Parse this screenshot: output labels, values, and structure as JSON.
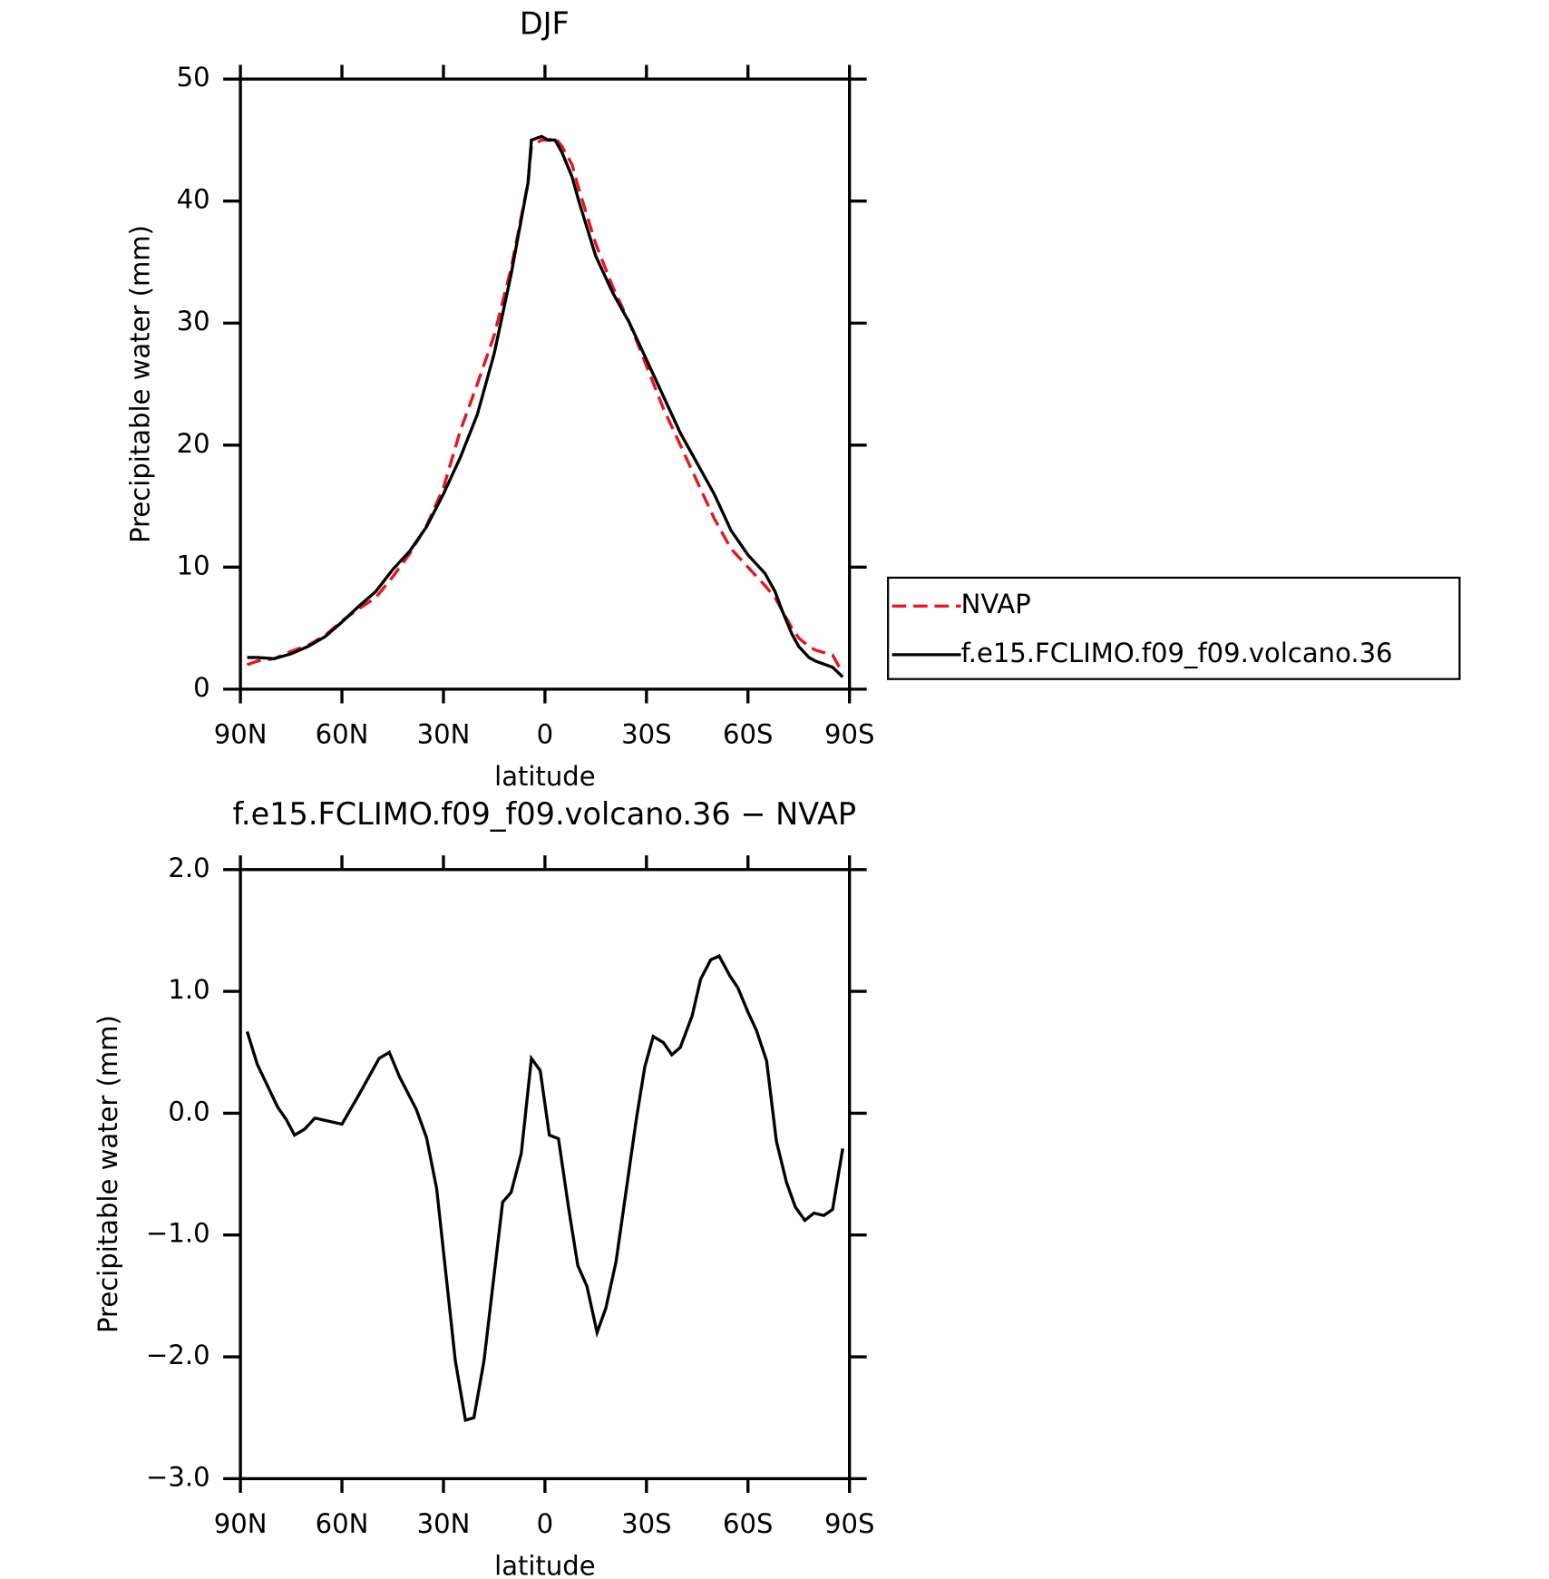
{
  "chart_data": [
    {
      "type": "line",
      "title": "DJF",
      "xlabel": "latitude",
      "ylabel": "Precipitable water (mm)",
      "x": [
        88,
        85,
        80,
        75,
        70,
        65,
        60,
        55,
        50,
        45,
        40,
        35,
        30,
        25,
        20,
        15,
        10,
        5,
        4,
        1,
        -1,
        -3,
        -5,
        -8,
        -10,
        -15,
        -20,
        -25,
        -30,
        -35,
        -40,
        -45,
        -50,
        -55,
        -60,
        -65,
        -68,
        -70,
        -73,
        -75,
        -78,
        -80,
        -85,
        -88
      ],
      "series": [
        {
          "name": "NVAP",
          "color": "#e8141e",
          "dash": true,
          "values": [
            2.0,
            2.3,
            2.5,
            3.1,
            3.6,
            4.4,
            5.6,
            6.6,
            7.5,
            9.2,
            11.1,
            13.4,
            16.5,
            21.2,
            25.0,
            29.0,
            34.5,
            41.5,
            44.5,
            45.0,
            45.0,
            45.2,
            44.5,
            43.0,
            41.0,
            36.5,
            33.0,
            30.0,
            26.5,
            23.0,
            20.0,
            17.0,
            14.0,
            11.5,
            10.0,
            8.5,
            7.5,
            6.5,
            5.0,
            4.2,
            3.5,
            3.2,
            2.8,
            1.3
          ]
        },
        {
          "name": "f.e15.FCLIMO.f09_f09.volcano.36",
          "color": "#000000",
          "dash": false,
          "values": [
            2.6,
            2.6,
            2.5,
            2.9,
            3.5,
            4.3,
            5.5,
            6.8,
            8.0,
            9.8,
            11.3,
            13.3,
            16.0,
            19.0,
            22.5,
            27.5,
            34.0,
            41.5,
            45.0,
            45.3,
            45.0,
            45.0,
            44.0,
            42.0,
            40.0,
            35.5,
            32.5,
            30.0,
            27.0,
            24.0,
            21.0,
            18.5,
            16.0,
            13.0,
            11.0,
            9.5,
            8.0,
            6.5,
            4.5,
            3.5,
            2.6,
            2.3,
            1.8,
            1.0
          ]
        }
      ],
      "xlim": [
        90,
        -90
      ],
      "xticks": [
        {
          "value": 90,
          "label": "90N"
        },
        {
          "value": 60,
          "label": "60N"
        },
        {
          "value": 30,
          "label": "30N"
        },
        0,
        {
          "value": -30,
          "label": "30S"
        },
        {
          "value": -60,
          "label": "60S"
        },
        {
          "value": -90,
          "label": "90S"
        }
      ],
      "ylim": [
        0,
        50
      ],
      "yticks": [
        0,
        10,
        20,
        30,
        40,
        50
      ],
      "legend": "right"
    },
    {
      "type": "line",
      "title": "f.e15.FCLIMO.f09_f09.volcano.36 − NVAP",
      "xlabel": "latitude",
      "ylabel": "Precipitable water (mm)",
      "x": [
        88,
        85,
        79,
        76.5,
        74,
        71,
        68,
        60,
        55,
        49,
        46,
        43,
        38,
        35,
        32,
        26.5,
        23.5,
        21,
        18,
        12.5,
        10,
        7,
        4,
        1.4,
        -1.3,
        -4,
        -7,
        -9.7,
        -12.4,
        -15.4,
        -18,
        -21,
        -27,
        -29.5,
        -32,
        -35,
        -37.5,
        -40,
        -43.5,
        -46,
        -49,
        -51.5,
        -54.6,
        -57,
        -60,
        -62.5,
        -65.5,
        -68.4,
        -71.4,
        -74,
        -76.8,
        -79.5,
        -82.4,
        -85,
        -88
      ],
      "color": "#000000",
      "values": [
        0.67,
        0.4,
        0.05,
        -0.05,
        -0.18,
        -0.13,
        -0.04,
        -0.09,
        0.15,
        0.45,
        0.5,
        0.3,
        0.03,
        -0.2,
        -0.62,
        -2.03,
        -2.52,
        -2.5,
        -2.03,
        -0.73,
        -0.65,
        -0.33,
        0.45,
        0.35,
        -0.18,
        -0.21,
        -0.78,
        -1.25,
        -1.42,
        -1.8,
        -1.6,
        -1.22,
        -0.05,
        0.38,
        0.63,
        0.58,
        0.48,
        0.54,
        0.8,
        1.1,
        1.26,
        1.29,
        1.13,
        1.03,
        0.83,
        0.68,
        0.43,
        -0.23,
        -0.57,
        -0.77,
        -0.88,
        -0.82,
        -0.84,
        -0.79,
        -0.29
      ],
      "xlim": [
        90,
        -90
      ],
      "xticks": [
        {
          "value": 90,
          "label": "90N"
        },
        {
          "value": 60,
          "label": "60N"
        },
        {
          "value": 30,
          "label": "30N"
        },
        0,
        {
          "value": -30,
          "label": "30S"
        },
        {
          "value": -60,
          "label": "60S"
        },
        {
          "value": -90,
          "label": "90S"
        }
      ],
      "ylim": [
        -3,
        2
      ],
      "yticks": [
        {
          "value": -3,
          "label": "−3.0"
        },
        {
          "value": -2,
          "label": "−2.0"
        },
        {
          "value": -1,
          "label": "−1.0"
        },
        {
          "value": 0,
          "label": "0.0"
        },
        {
          "value": 1,
          "label": "1.0"
        },
        {
          "value": 2,
          "label": "2.0"
        }
      ]
    }
  ]
}
